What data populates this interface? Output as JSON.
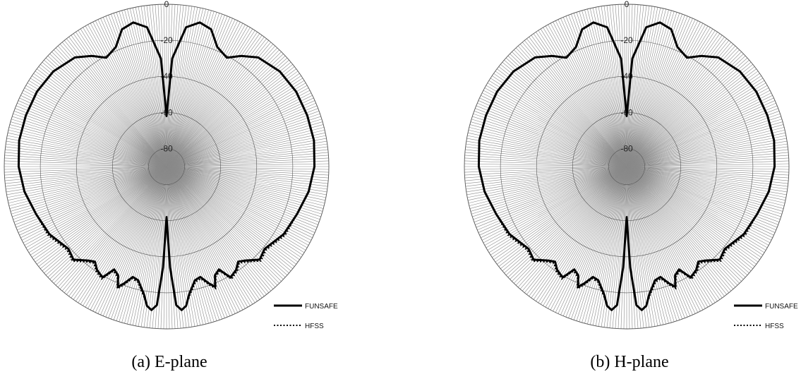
{
  "chart_data": [
    {
      "type": "polar-line",
      "caption": "(a) E-plane",
      "radial_range": [
        -90,
        0
      ],
      "radial_ticks": [
        "0",
        "-20",
        "-40",
        "-60",
        "-80"
      ],
      "radial_tick_values": [
        0,
        -20,
        -40,
        -60,
        -80
      ],
      "grid": true,
      "legend_position": "bottom-right",
      "series": [
        {
          "name": "FUNSAFE",
          "style": "solid",
          "color": "#000000",
          "angles_deg": [
            0,
            3,
            8,
            13,
            18,
            23,
            29,
            34,
            40,
            50,
            60,
            70,
            80,
            90,
            100,
            110,
            120,
            130,
            135,
            140,
            143,
            146,
            150,
            153,
            156,
            158,
            160,
            163,
            166,
            170,
            172,
            174,
            176,
            178,
            180
          ],
          "values_db": [
            -62,
            -30,
            -12,
            -8,
            -10,
            -18,
            -21,
            -16,
            -11,
            -8,
            -7,
            -7,
            -7,
            -8,
            -10,
            -13,
            -15,
            -19,
            -17,
            -22,
            -24,
            -21,
            -19,
            -26,
            -24,
            -18,
            -21,
            -26,
            -25,
            -18,
            -12,
            -10,
            -13,
            -34,
            -62
          ]
        },
        {
          "name": "HFSS",
          "style": "dotted",
          "color": "#000000",
          "angles_deg": [
            0,
            3,
            8,
            13,
            18,
            23,
            29,
            34,
            40,
            50,
            60,
            70,
            80,
            90,
            100,
            110,
            120,
            130,
            135,
            140,
            143,
            146,
            150,
            153,
            156,
            158,
            160,
            163,
            166,
            170,
            172,
            174,
            176,
            178,
            180
          ],
          "values_db": [
            -62,
            -30,
            -12,
            -8,
            -10,
            -18,
            -21,
            -16,
            -11,
            -8,
            -7,
            -7,
            -7,
            -8,
            -10,
            -13,
            -14,
            -18,
            -16,
            -21,
            -23,
            -20,
            -18,
            -25,
            -23,
            -17,
            -20,
            -25,
            -24,
            -17,
            -12,
            -10,
            -13,
            -34,
            -62
          ]
        }
      ]
    },
    {
      "type": "polar-line",
      "caption": "(b) H-plane",
      "radial_range": [
        -90,
        0
      ],
      "radial_ticks": [
        "0",
        "-20",
        "-40",
        "-60",
        "-80"
      ],
      "radial_tick_values": [
        0,
        -20,
        -40,
        -60,
        -80
      ],
      "grid": true,
      "legend_position": "bottom-right",
      "series": [
        {
          "name": "FUNSAFE",
          "style": "solid",
          "color": "#000000",
          "angles_deg": [
            0,
            3,
            8,
            13,
            18,
            23,
            29,
            34,
            40,
            50,
            60,
            70,
            80,
            90,
            100,
            110,
            120,
            130,
            135,
            140,
            143,
            146,
            150,
            153,
            156,
            158,
            160,
            163,
            166,
            170,
            172,
            174,
            176,
            178,
            180
          ],
          "values_db": [
            -62,
            -30,
            -12,
            -8,
            -10,
            -18,
            -21,
            -16,
            -11,
            -8,
            -7,
            -7,
            -7,
            -8,
            -10,
            -13,
            -15,
            -19,
            -17,
            -22,
            -24,
            -21,
            -19,
            -26,
            -24,
            -18,
            -21,
            -26,
            -25,
            -18,
            -12,
            -10,
            -13,
            -34,
            -62
          ]
        },
        {
          "name": "HFSS",
          "style": "dotted",
          "color": "#000000",
          "angles_deg": [
            0,
            3,
            8,
            13,
            18,
            23,
            29,
            34,
            40,
            50,
            60,
            70,
            80,
            90,
            100,
            110,
            120,
            130,
            135,
            140,
            143,
            146,
            150,
            153,
            156,
            158,
            160,
            163,
            166,
            170,
            172,
            174,
            176,
            178,
            180
          ],
          "values_db": [
            -62,
            -30,
            -12,
            -8,
            -10,
            -18,
            -21,
            -16,
            -11,
            -8,
            -7,
            -7,
            -7,
            -8,
            -10,
            -13,
            -14,
            -18,
            -16,
            -21,
            -23,
            -20,
            -18,
            -25,
            -23,
            -17,
            -20,
            -25,
            -24,
            -17,
            -12,
            -10,
            -13,
            -34,
            -62
          ]
        }
      ]
    }
  ],
  "colors": {
    "spoke": "#8a8a8a",
    "ring": "#555555",
    "background": "#ffffff",
    "trace": "#000000"
  }
}
